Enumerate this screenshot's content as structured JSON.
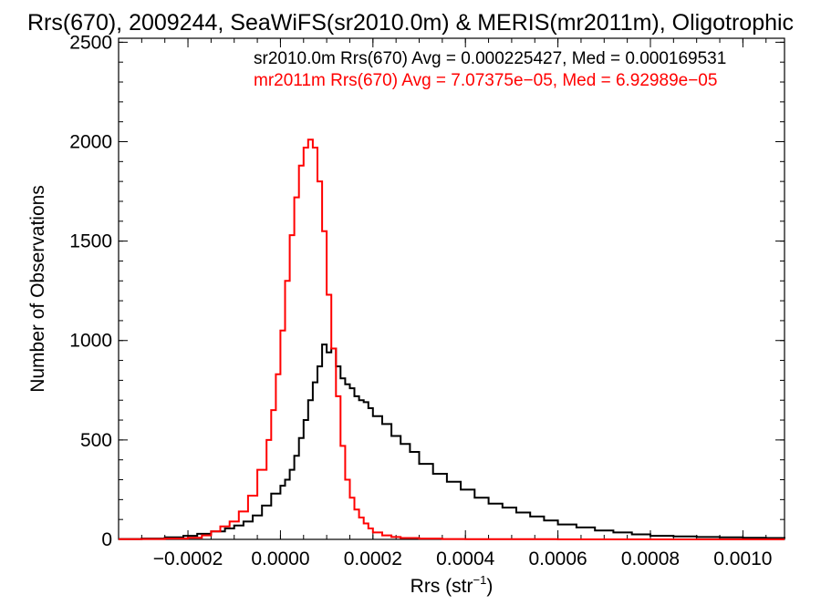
{
  "chart_data": {
    "type": "line",
    "title": "Rrs(670), 2009244, SeaWiFS(sr2010.0m) & MERIS(mr2011m), Oligotrophic",
    "xlabel": "Rrs (str",
    "xlabel_sup": "−1",
    "xlabel_close": ")",
    "ylabel": "Number of Observations",
    "xlim": [
      -0.00035,
      0.00109
    ],
    "ylim": [
      0,
      2520
    ],
    "x_ticks": [
      -0.0002,
      0.0,
      0.0002,
      0.0004,
      0.0006,
      0.0008,
      0.001
    ],
    "x_tick_labels": [
      "−0.0002",
      "0.0000",
      "0.0002",
      "0.0004",
      "0.0006",
      "0.0008",
      "0.0010"
    ],
    "y_ticks": [
      0,
      500,
      1000,
      1500,
      2000,
      2500
    ],
    "y_tick_labels": [
      "0",
      "500",
      "1000",
      "1500",
      "2000",
      "2500"
    ],
    "grid": false,
    "legend_placement": "top-left inside plot",
    "series": [
      {
        "name": "sr2010.0m Rrs(670) Avg = 0.000225427, Med = 0.000169531",
        "color": "#000000",
        "x": [
          -0.00035,
          -0.0003,
          -0.00025,
          -0.00021,
          -0.00018,
          -0.00015,
          -0.00012,
          -0.0001,
          -8e-05,
          -6e-05,
          -4e-05,
          -2e-05,
          0.0,
          1e-05,
          2e-05,
          3e-05,
          4e-05,
          5e-05,
          6e-05,
          7e-05,
          8e-05,
          9e-05,
          0.0001,
          0.00011,
          0.00012,
          0.00013,
          0.00014,
          0.00015,
          0.00016,
          0.00017,
          0.00018,
          0.00019,
          0.0002,
          0.00022,
          0.00024,
          0.00026,
          0.00028,
          0.0003,
          0.00033,
          0.00036,
          0.00039,
          0.00042,
          0.00045,
          0.00048,
          0.00051,
          0.00054,
          0.00057,
          0.0006,
          0.00064,
          0.00068,
          0.00072,
          0.00076,
          0.0008,
          0.00085,
          0.0009,
          0.00095,
          0.001,
          0.00105,
          0.00109
        ],
        "y": [
          2,
          4,
          10,
          18,
          28,
          40,
          55,
          70,
          90,
          120,
          170,
          230,
          270,
          300,
          350,
          420,
          510,
          600,
          700,
          790,
          870,
          980,
          940,
          960,
          870,
          810,
          780,
          760,
          720,
          700,
          690,
          660,
          620,
          580,
          520,
          480,
          440,
          380,
          330,
          290,
          250,
          210,
          180,
          160,
          135,
          115,
          95,
          75,
          60,
          45,
          35,
          25,
          18,
          15,
          12,
          10,
          8,
          7,
          5
        ]
      },
      {
        "name": "mr2011m Rrs(670) Avg = 7.07375e−05, Med = 6.92989e−05",
        "color": "#ff0000",
        "x": [
          -0.00035,
          -0.0003,
          -0.00025,
          -0.0002,
          -0.00017,
          -0.00015,
          -0.00013,
          -0.00011,
          -9e-05,
          -7e-05,
          -5e-05,
          -3e-05,
          -2e-05,
          -1e-05,
          0.0,
          1e-05,
          2e-05,
          3e-05,
          4e-05,
          5e-05,
          6e-05,
          7e-05,
          8e-05,
          9e-05,
          0.0001,
          0.00011,
          0.00012,
          0.00013,
          0.00014,
          0.00015,
          0.00016,
          0.00017,
          0.00018,
          0.00019,
          0.0002,
          0.00022,
          0.00024,
          0.00026,
          0.0003,
          0.00035,
          0.0004,
          0.0006,
          0.0008,
          0.00109
        ],
        "y": [
          1,
          2,
          4,
          8,
          20,
          40,
          65,
          90,
          140,
          220,
          350,
          500,
          650,
          830,
          1050,
          1300,
          1530,
          1720,
          1880,
          1970,
          2010,
          1970,
          1800,
          1550,
          1230,
          960,
          720,
          470,
          300,
          210,
          150,
          110,
          80,
          55,
          35,
          20,
          12,
          7,
          4,
          2,
          1,
          0,
          0,
          0
        ]
      }
    ]
  }
}
